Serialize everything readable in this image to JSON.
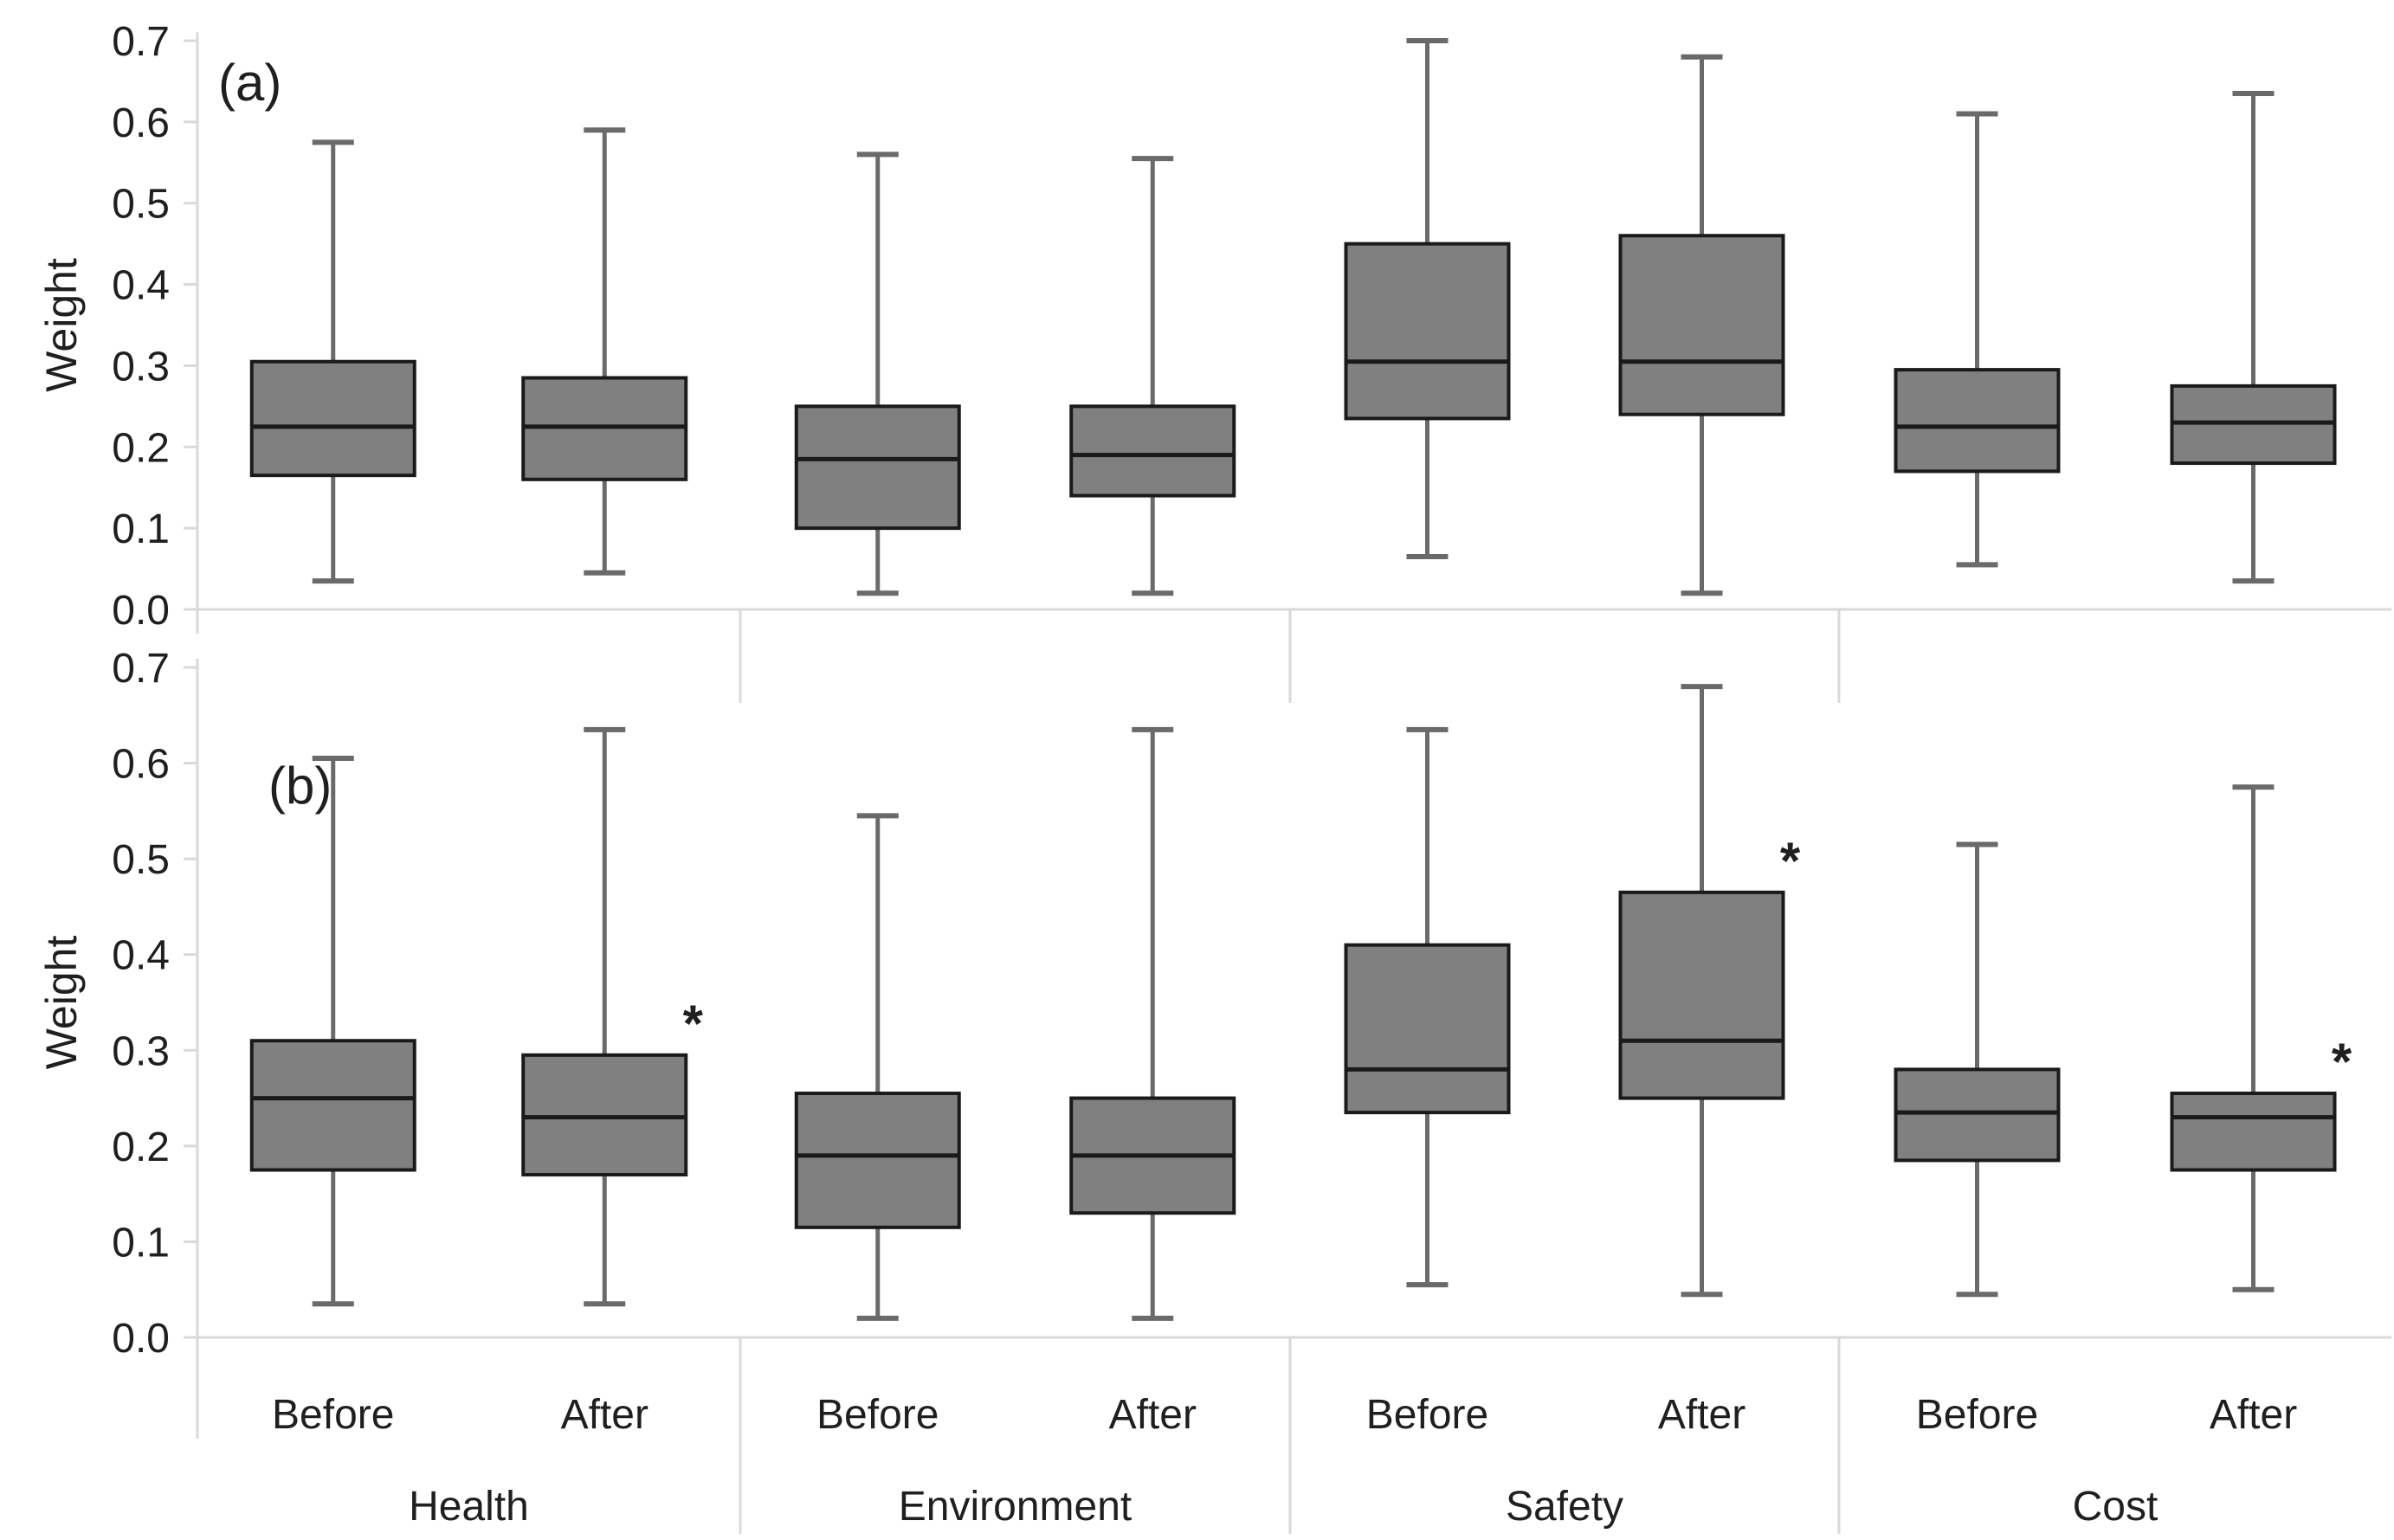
{
  "figure": {
    "y_axis_title": "Weight",
    "conditions": [
      "Before",
      "After"
    ],
    "groups": [
      "Health",
      "Environment",
      "Safety",
      "Cost"
    ],
    "significance_marker": "*"
  },
  "colors": {
    "background": "#ffffff",
    "box_fill": "#808080",
    "box_border": "#1a1a1a",
    "median_line": "#1a1a1a",
    "whisker": "#6a6a6a",
    "axis_line": "#d9d9d9",
    "text": "#1f1f1f",
    "significance": "#1a1a1a"
  },
  "chart_data": [
    {
      "type": "boxplot",
      "panel": "a",
      "panel_label": "(a)",
      "ylabel": "Weight",
      "ylim": [
        0.0,
        0.7
      ],
      "yticks": [
        0.0,
        0.1,
        0.2,
        0.3,
        0.4,
        0.5,
        0.6,
        0.7
      ],
      "ytick_labels": [
        "0.0",
        "0.1",
        "0.2",
        "0.3",
        "0.4",
        "0.5",
        "0.6",
        "0.7"
      ],
      "grid": false,
      "groups": [
        "Health",
        "Environment",
        "Safety",
        "Cost"
      ],
      "conditions": [
        "Before",
        "After"
      ],
      "boxes": [
        {
          "group": "Health",
          "condition": "Before",
          "whisker_low": 0.035,
          "q1": 0.165,
          "median": 0.225,
          "q3": 0.305,
          "whisker_high": 0.575,
          "significant": false
        },
        {
          "group": "Health",
          "condition": "After",
          "whisker_low": 0.045,
          "q1": 0.16,
          "median": 0.225,
          "q3": 0.285,
          "whisker_high": 0.59,
          "significant": false
        },
        {
          "group": "Environment",
          "condition": "Before",
          "whisker_low": 0.02,
          "q1": 0.1,
          "median": 0.185,
          "q3": 0.25,
          "whisker_high": 0.56,
          "significant": false
        },
        {
          "group": "Environment",
          "condition": "After",
          "whisker_low": 0.02,
          "q1": 0.14,
          "median": 0.19,
          "q3": 0.25,
          "whisker_high": 0.555,
          "significant": false
        },
        {
          "group": "Safety",
          "condition": "Before",
          "whisker_low": 0.065,
          "q1": 0.235,
          "median": 0.305,
          "q3": 0.45,
          "whisker_high": 0.7,
          "significant": false
        },
        {
          "group": "Safety",
          "condition": "After",
          "whisker_low": 0.02,
          "q1": 0.24,
          "median": 0.305,
          "q3": 0.46,
          "whisker_high": 0.68,
          "significant": false
        },
        {
          "group": "Cost",
          "condition": "Before",
          "whisker_low": 0.055,
          "q1": 0.17,
          "median": 0.225,
          "q3": 0.295,
          "whisker_high": 0.61,
          "significant": false
        },
        {
          "group": "Cost",
          "condition": "After",
          "whisker_low": 0.035,
          "q1": 0.18,
          "median": 0.23,
          "q3": 0.275,
          "whisker_high": 0.635,
          "significant": false
        }
      ]
    },
    {
      "type": "boxplot",
      "panel": "b",
      "panel_label": "(b)",
      "ylabel": "Weight",
      "ylim": [
        0.0,
        0.7
      ],
      "yticks": [
        0.0,
        0.1,
        0.2,
        0.3,
        0.4,
        0.5,
        0.6,
        0.7
      ],
      "ytick_labels": [
        "0.0",
        "0.1",
        "0.2",
        "0.3",
        "0.4",
        "0.5",
        "0.6",
        "0.7"
      ],
      "grid": false,
      "groups": [
        "Health",
        "Environment",
        "Safety",
        "Cost"
      ],
      "conditions": [
        "Before",
        "After"
      ],
      "boxes": [
        {
          "group": "Health",
          "condition": "Before",
          "whisker_low": 0.035,
          "q1": 0.175,
          "median": 0.25,
          "q3": 0.31,
          "whisker_high": 0.605,
          "significant": false
        },
        {
          "group": "Health",
          "condition": "After",
          "whisker_low": 0.035,
          "q1": 0.17,
          "median": 0.23,
          "q3": 0.295,
          "whisker_high": 0.635,
          "significant": true
        },
        {
          "group": "Environment",
          "condition": "Before",
          "whisker_low": 0.02,
          "q1": 0.115,
          "median": 0.19,
          "q3": 0.255,
          "whisker_high": 0.545,
          "significant": false
        },
        {
          "group": "Environment",
          "condition": "After",
          "whisker_low": 0.02,
          "q1": 0.13,
          "median": 0.19,
          "q3": 0.25,
          "whisker_high": 0.635,
          "significant": false
        },
        {
          "group": "Safety",
          "condition": "Before",
          "whisker_low": 0.055,
          "q1": 0.235,
          "median": 0.28,
          "q3": 0.41,
          "whisker_high": 0.635,
          "significant": false
        },
        {
          "group": "Safety",
          "condition": "After",
          "whisker_low": 0.045,
          "q1": 0.25,
          "median": 0.31,
          "q3": 0.465,
          "whisker_high": 0.68,
          "significant": true
        },
        {
          "group": "Cost",
          "condition": "Before",
          "whisker_low": 0.045,
          "q1": 0.185,
          "median": 0.235,
          "q3": 0.28,
          "whisker_high": 0.515,
          "significant": false
        },
        {
          "group": "Cost",
          "condition": "After",
          "whisker_low": 0.05,
          "q1": 0.175,
          "median": 0.23,
          "q3": 0.255,
          "whisker_high": 0.575,
          "significant": true
        }
      ]
    }
  ]
}
